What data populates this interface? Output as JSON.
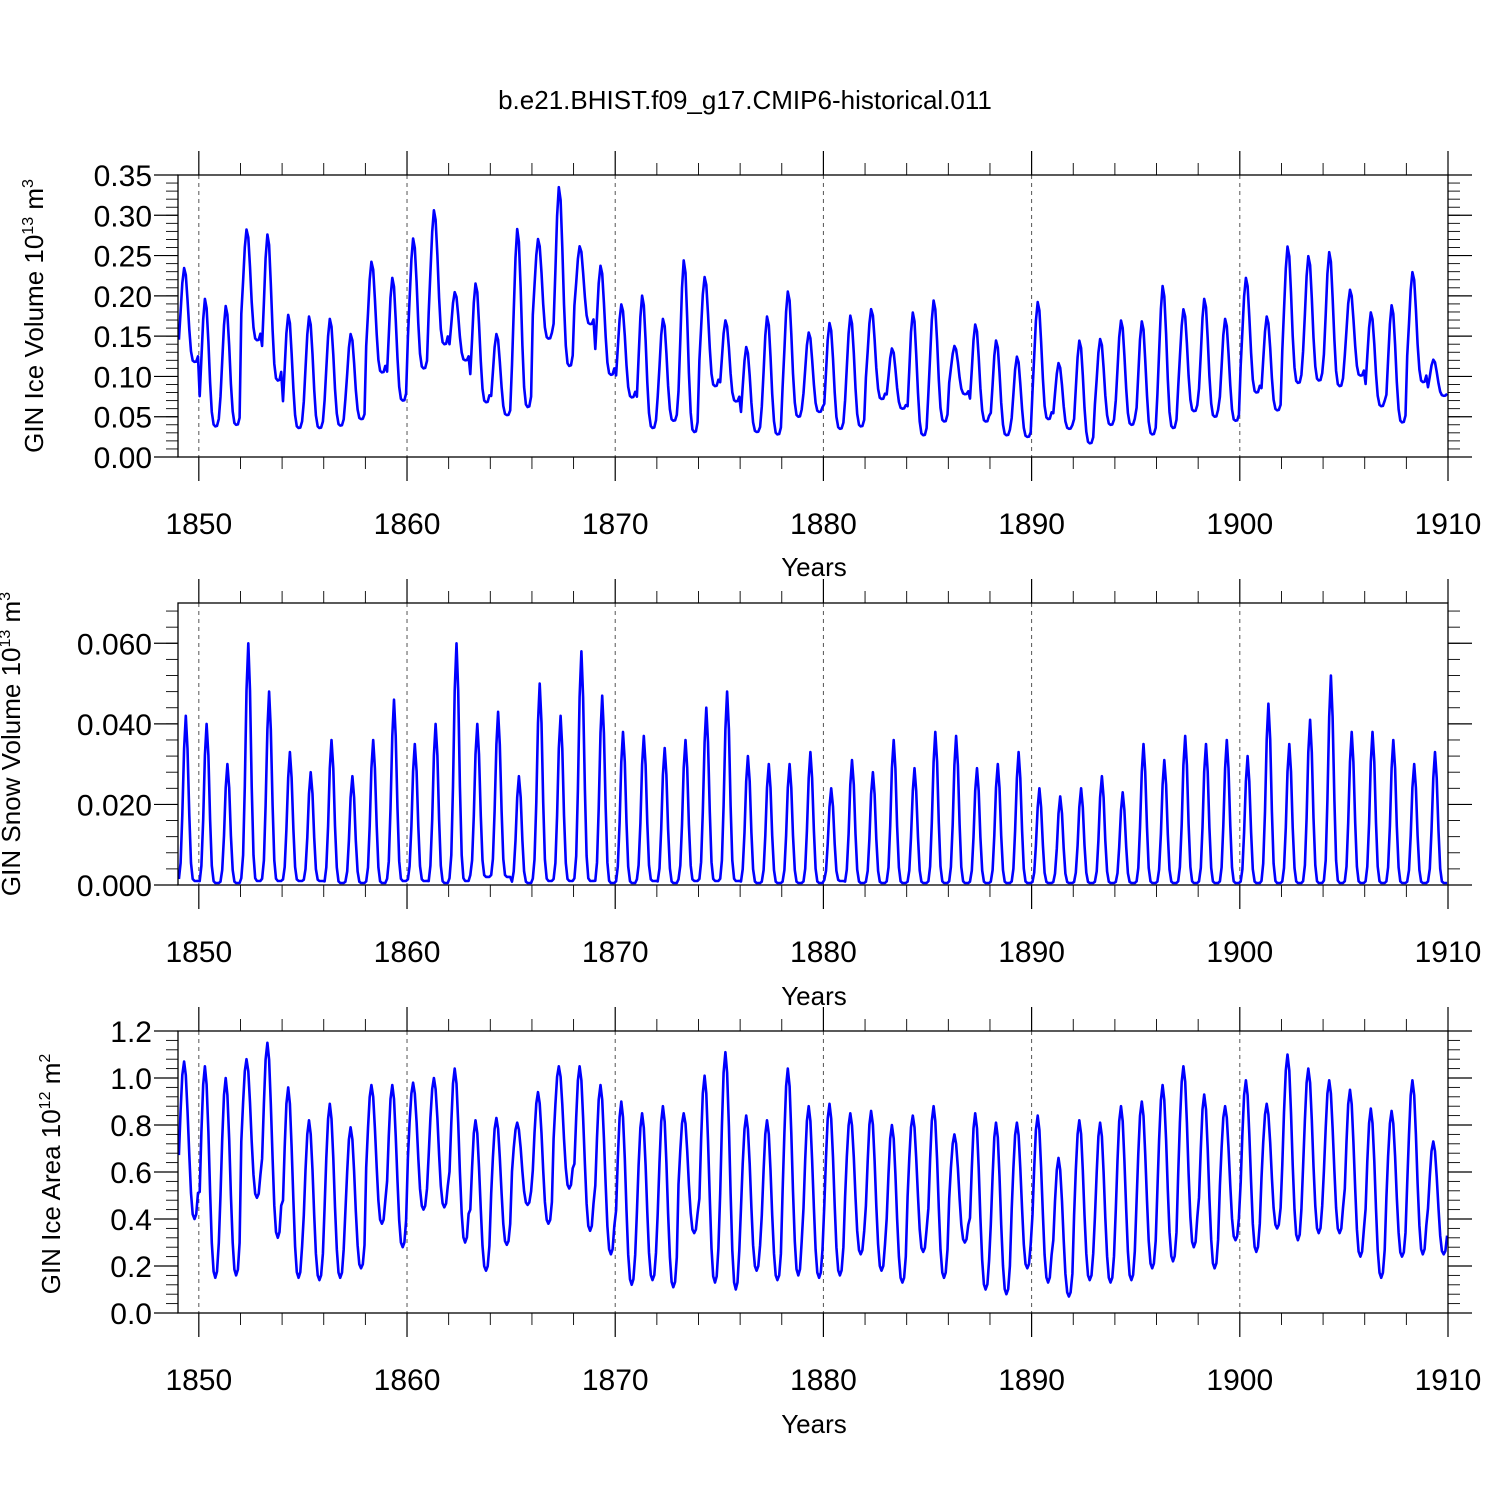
{
  "title": "b.e21.BHIST.f09_g17.CMIP6-historical.011",
  "colors": {
    "line": "#0000ff",
    "axis": "#000000",
    "grid": "#555555"
  },
  "chart_data": [
    {
      "type": "line",
      "ylabel_base": "GIN Ice Volume 10",
      "ylabel_exp": "13",
      "ylabel_unit": " m",
      "ylabel_unit_exp": "3",
      "xlabel": "Years",
      "xlim": [
        1849.0,
        1910.0
      ],
      "ylim": [
        0.0,
        0.35
      ],
      "x_ticks": [
        1850,
        1860,
        1870,
        1880,
        1890,
        1900,
        1910
      ],
      "x_tick_labels": [
        "1850",
        "1860",
        "1870",
        "1880",
        "1890",
        "1900",
        "1910"
      ],
      "y_ticks": [
        0.0,
        0.05,
        0.1,
        0.15,
        0.2,
        0.25,
        0.3,
        0.35
      ],
      "y_tick_labels": [
        "0.00",
        "0.05",
        "0.10",
        "0.15",
        "0.20",
        "0.25",
        "0.30",
        "0.35"
      ],
      "grid": "dashed vertical at major years",
      "peak_month": 3.2,
      "seasonal_shape": 1.8,
      "annual_max": [
        0.235,
        0.197,
        0.188,
        0.283,
        0.277,
        0.177,
        0.175,
        0.172,
        0.153,
        0.243,
        0.223,
        0.272,
        0.307,
        0.205,
        0.216,
        0.153,
        0.284,
        0.271,
        0.336,
        0.262,
        0.238,
        0.19,
        0.201,
        0.172,
        0.245,
        0.224,
        0.17,
        0.137,
        0.175,
        0.206,
        0.155,
        0.167,
        0.176,
        0.184,
        0.135,
        0.18,
        0.195,
        0.138,
        0.165,
        0.145,
        0.125,
        0.193,
        0.117,
        0.145,
        0.147,
        0.17,
        0.169,
        0.213,
        0.184,
        0.197,
        0.172,
        0.223,
        0.175,
        0.262,
        0.25,
        0.255,
        0.208,
        0.18,
        0.189,
        0.23,
        0.121
      ],
      "annual_min": [
        0.118,
        0.038,
        0.04,
        0.145,
        0.095,
        0.036,
        0.036,
        0.039,
        0.047,
        0.105,
        0.07,
        0.11,
        0.14,
        0.12,
        0.068,
        0.052,
        0.062,
        0.147,
        0.113,
        0.165,
        0.102,
        0.074,
        0.036,
        0.045,
        0.031,
        0.088,
        0.069,
        0.031,
        0.028,
        0.05,
        0.056,
        0.035,
        0.038,
        0.072,
        0.06,
        0.027,
        0.044,
        0.078,
        0.044,
        0.027,
        0.025,
        0.047,
        0.035,
        0.017,
        0.04,
        0.04,
        0.028,
        0.036,
        0.057,
        0.05,
        0.045,
        0.08,
        0.058,
        0.092,
        0.095,
        0.088,
        0.101,
        0.063,
        0.043,
        0.093,
        0.076
      ]
    },
    {
      "type": "line",
      "ylabel_base": "GIN Snow Volume 10",
      "ylabel_exp": "13",
      "ylabel_unit": " m",
      "ylabel_unit_exp": "3",
      "xlabel": "Years",
      "xlim": [
        1849.0,
        1910.0
      ],
      "ylim": [
        0.0,
        0.07
      ],
      "x_ticks": [
        1850,
        1860,
        1870,
        1880,
        1890,
        1900,
        1910
      ],
      "x_tick_labels": [
        "1850",
        "1860",
        "1870",
        "1880",
        "1890",
        "1900",
        "1910"
      ],
      "y_ticks": [
        0.0,
        0.02,
        0.04,
        0.06
      ],
      "y_tick_labels": [
        "0.000",
        "0.020",
        "0.040",
        "0.060"
      ],
      "grid": "dashed vertical at major years",
      "peak_month": 4.0,
      "seasonal_shape": 3.2,
      "annual_max": [
        0.042,
        0.04,
        0.03,
        0.06,
        0.048,
        0.033,
        0.028,
        0.036,
        0.027,
        0.036,
        0.046,
        0.035,
        0.04,
        0.06,
        0.04,
        0.043,
        0.027,
        0.05,
        0.042,
        0.058,
        0.047,
        0.038,
        0.037,
        0.034,
        0.036,
        0.044,
        0.048,
        0.032,
        0.03,
        0.03,
        0.033,
        0.024,
        0.031,
        0.028,
        0.036,
        0.029,
        0.038,
        0.037,
        0.029,
        0.03,
        0.033,
        0.024,
        0.022,
        0.024,
        0.027,
        0.023,
        0.035,
        0.031,
        0.037,
        0.035,
        0.036,
        0.032,
        0.045,
        0.035,
        0.041,
        0.052,
        0.038,
        0.038,
        0.036,
        0.03,
        0.033
      ],
      "annual_min": [
        0.001,
        0.0005,
        0.0005,
        0.001,
        0.001,
        0.001,
        0.001,
        0.0005,
        0.0005,
        0.0005,
        0.001,
        0.001,
        0.0005,
        0.001,
        0.002,
        0.002,
        0.0005,
        0.001,
        0.001,
        0.001,
        0.0005,
        0.0005,
        0.001,
        0.0005,
        0.001,
        0.001,
        0.001,
        0.0005,
        0.0005,
        0.0005,
        0.0005,
        0.001,
        0.0005,
        0.0005,
        0.0005,
        0.0005,
        0.0005,
        0.0005,
        0.0005,
        0.0005,
        0.0005,
        0.0005,
        0.0005,
        0.0005,
        0.0005,
        0.0005,
        0.0005,
        0.0005,
        0.0005,
        0.0005,
        0.0005,
        0.0005,
        0.0005,
        0.0005,
        0.0005,
        0.0005,
        0.0005,
        0.0005,
        0.0005,
        0.0005,
        0.0005
      ]
    },
    {
      "type": "line",
      "ylabel_base": "GIN Ice Area 10",
      "ylabel_exp": "12",
      "ylabel_unit": " m",
      "ylabel_unit_exp": "2",
      "xlabel": "Years",
      "xlim": [
        1849.0,
        1910.0
      ],
      "ylim": [
        0.0,
        1.2
      ],
      "x_ticks": [
        1850,
        1860,
        1870,
        1880,
        1890,
        1900,
        1910
      ],
      "x_tick_labels": [
        "1850",
        "1860",
        "1870",
        "1880",
        "1890",
        "1900",
        "1910"
      ],
      "y_ticks": [
        0.0,
        0.2,
        0.4,
        0.6,
        0.8,
        1.0,
        1.2
      ],
      "y_tick_labels": [
        "0.0",
        "0.2",
        "0.4",
        "0.6",
        "0.8",
        "1.0",
        "1.2"
      ],
      "grid": "dashed vertical at major years",
      "peak_month": 3.0,
      "seasonal_shape": 1.3,
      "annual_max": [
        1.07,
        1.05,
        1.0,
        1.08,
        1.15,
        0.96,
        0.82,
        0.89,
        0.79,
        0.97,
        0.97,
        0.98,
        1.0,
        1.04,
        0.82,
        0.83,
        0.81,
        0.94,
        1.05,
        1.05,
        0.97,
        0.9,
        0.85,
        0.88,
        0.85,
        1.01,
        1.11,
        0.84,
        0.82,
        1.04,
        0.88,
        0.89,
        0.85,
        0.86,
        0.8,
        0.84,
        0.88,
        0.76,
        0.85,
        0.81,
        0.81,
        0.84,
        0.66,
        0.82,
        0.81,
        0.88,
        0.9,
        0.97,
        1.05,
        0.93,
        0.88,
        0.99,
        0.89,
        1.1,
        1.04,
        0.99,
        0.95,
        0.87,
        0.86,
        0.99,
        0.73
      ],
      "annual_min": [
        0.4,
        0.15,
        0.16,
        0.49,
        0.32,
        0.15,
        0.14,
        0.15,
        0.19,
        0.38,
        0.28,
        0.44,
        0.45,
        0.3,
        0.18,
        0.29,
        0.46,
        0.38,
        0.53,
        0.35,
        0.25,
        0.12,
        0.14,
        0.11,
        0.34,
        0.13,
        0.1,
        0.18,
        0.14,
        0.16,
        0.15,
        0.16,
        0.25,
        0.18,
        0.13,
        0.26,
        0.15,
        0.3,
        0.1,
        0.08,
        0.19,
        0.13,
        0.07,
        0.14,
        0.13,
        0.14,
        0.19,
        0.22,
        0.28,
        0.19,
        0.31,
        0.26,
        0.36,
        0.31,
        0.34,
        0.34,
        0.24,
        0.15,
        0.24,
        0.25,
        0.25
      ]
    }
  ]
}
